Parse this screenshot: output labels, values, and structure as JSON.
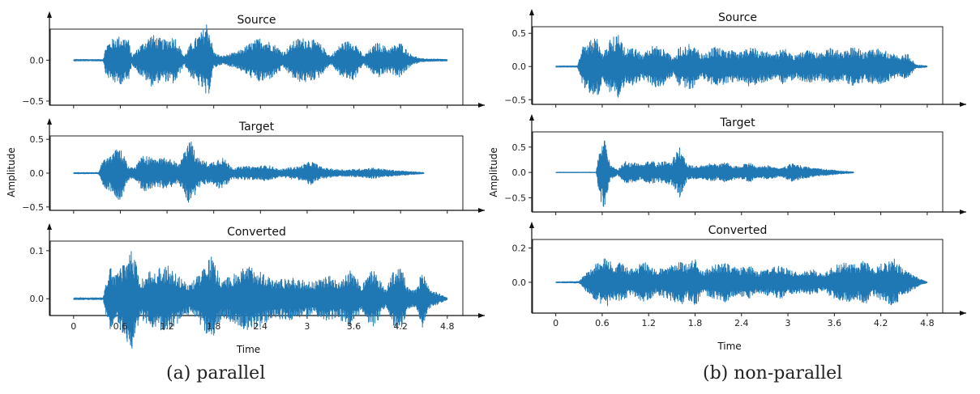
{
  "chart_data": [
    {
      "type": "line",
      "caption": "(a) parallel",
      "xlabel": "Time",
      "ylabel": "Amplitude",
      "xlim": [
        -0.3,
        5.0
      ],
      "xticks": [
        0,
        0.6,
        1.2,
        1.8,
        2.4,
        3,
        3.6,
        4.2,
        4.8
      ],
      "xtick_labels": [
        "0",
        "0.6",
        "1.2",
        "1.8",
        "2.4",
        "3",
        "3.6",
        "4.2",
        "4.8"
      ],
      "grid": false,
      "subplots": [
        {
          "title": "Source",
          "ylim": [
            -0.55,
            0.38
          ],
          "yticks": [
            0.0,
            -0.5
          ],
          "ytick_labels": [
            "0.0",
            "−0.5"
          ],
          "duration": 4.8,
          "envelope": [
            [
              0,
              0.01
            ],
            [
              0.38,
              0.01
            ],
            [
              0.42,
              0.2
            ],
            [
              0.55,
              0.3
            ],
            [
              0.7,
              0.28
            ],
            [
              0.75,
              0.05
            ],
            [
              0.85,
              0.18
            ],
            [
              1.0,
              0.32
            ],
            [
              1.15,
              0.25
            ],
            [
              1.3,
              0.3
            ],
            [
              1.42,
              0.05
            ],
            [
              1.5,
              0.2
            ],
            [
              1.65,
              0.36
            ],
            [
              1.72,
              0.5
            ],
            [
              1.8,
              0.1
            ],
            [
              1.9,
              0.05
            ],
            [
              2.1,
              0.1
            ],
            [
              2.25,
              0.2
            ],
            [
              2.4,
              0.28
            ],
            [
              2.55,
              0.22
            ],
            [
              2.7,
              0.1
            ],
            [
              2.85,
              0.26
            ],
            [
              3.0,
              0.28
            ],
            [
              3.15,
              0.22
            ],
            [
              3.3,
              0.05
            ],
            [
              3.45,
              0.22
            ],
            [
              3.6,
              0.25
            ],
            [
              3.72,
              0.05
            ],
            [
              3.9,
              0.22
            ],
            [
              4.05,
              0.15
            ],
            [
              4.2,
              0.22
            ],
            [
              4.32,
              0.08
            ],
            [
              4.45,
              0.02
            ],
            [
              4.8,
              0.01
            ]
          ]
        },
        {
          "title": "Target",
          "ylim": [
            -0.55,
            0.55
          ],
          "yticks": [
            0.5,
            0.0,
            -0.5
          ],
          "ytick_labels": [
            "0.5",
            "0.0",
            "−0.5"
          ],
          "duration": 4.5,
          "envelope": [
            [
              0,
              0.01
            ],
            [
              0.32,
              0.01
            ],
            [
              0.38,
              0.2
            ],
            [
              0.5,
              0.3
            ],
            [
              0.6,
              0.42
            ],
            [
              0.7,
              0.1
            ],
            [
              0.78,
              0.08
            ],
            [
              0.9,
              0.28
            ],
            [
              1.05,
              0.2
            ],
            [
              1.2,
              0.24
            ],
            [
              1.35,
              0.15
            ],
            [
              1.5,
              0.5
            ],
            [
              1.6,
              0.22
            ],
            [
              1.75,
              0.15
            ],
            [
              1.9,
              0.25
            ],
            [
              2.05,
              0.08
            ],
            [
              2.2,
              0.1
            ],
            [
              2.35,
              0.1
            ],
            [
              2.5,
              0.12
            ],
            [
              2.65,
              0.05
            ],
            [
              2.75,
              0.08
            ],
            [
              2.9,
              0.1
            ],
            [
              3.05,
              0.18
            ],
            [
              3.2,
              0.08
            ],
            [
              3.35,
              0.06
            ],
            [
              3.5,
              0.05
            ],
            [
              3.65,
              0.06
            ],
            [
              3.85,
              0.08
            ],
            [
              4.05,
              0.05
            ],
            [
              4.25,
              0.03
            ],
            [
              4.5,
              0.01
            ]
          ]
        },
        {
          "title": "Converted",
          "ylim": [
            -0.035,
            0.12
          ],
          "yticks": [
            0.1,
            0.0
          ],
          "ytick_labels": [
            "0.1",
            "0.0"
          ],
          "duration": 4.8,
          "envelope": [
            [
              0,
              0.002
            ],
            [
              0.38,
              0.002
            ],
            [
              0.45,
              0.07
            ],
            [
              0.55,
              0.05
            ],
            [
              0.75,
              0.11
            ],
            [
              0.85,
              0.04
            ],
            [
              1.0,
              0.06
            ],
            [
              1.2,
              0.07
            ],
            [
              1.35,
              0.05
            ],
            [
              1.5,
              0.03
            ],
            [
              1.6,
              0.05
            ],
            [
              1.78,
              0.09
            ],
            [
              1.9,
              0.04
            ],
            [
              2.05,
              0.05
            ],
            [
              2.25,
              0.07
            ],
            [
              2.4,
              0.06
            ],
            [
              2.55,
              0.04
            ],
            [
              2.75,
              0.045
            ],
            [
              2.9,
              0.04
            ],
            [
              3.1,
              0.035
            ],
            [
              3.25,
              0.05
            ],
            [
              3.4,
              0.04
            ],
            [
              3.55,
              0.06
            ],
            [
              3.7,
              0.03
            ],
            [
              3.85,
              0.065
            ],
            [
              4.0,
              0.02
            ],
            [
              4.1,
              0.055
            ],
            [
              4.2,
              0.07
            ],
            [
              4.3,
              0.02
            ],
            [
              4.4,
              0.02
            ],
            [
              4.48,
              0.06
            ],
            [
              4.58,
              0.02
            ],
            [
              4.8,
              0.002
            ]
          ]
        }
      ]
    },
    {
      "type": "line",
      "caption": "(b) non-parallel",
      "xlabel": "Time",
      "ylabel": "Amplitude",
      "xlim": [
        -0.3,
        5.0
      ],
      "xticks": [
        0,
        0.6,
        1.2,
        1.8,
        2.4,
        3,
        3.6,
        4.2,
        4.8
      ],
      "xtick_labels": [
        "0",
        "0.6",
        "1.2",
        "1.8",
        "2.4",
        "3",
        "3.6",
        "4.2",
        "4.8"
      ],
      "grid": false,
      "subplots": [
        {
          "title": "Source",
          "ylim": [
            -0.57,
            0.6
          ],
          "yticks": [
            0.5,
            0.0,
            -0.5
          ],
          "ytick_labels": [
            "0.5",
            "0.0",
            "−0.5"
          ],
          "duration": 4.8,
          "envelope": [
            [
              0,
              0.01
            ],
            [
              0.28,
              0.01
            ],
            [
              0.35,
              0.3
            ],
            [
              0.45,
              0.42
            ],
            [
              0.55,
              0.45
            ],
            [
              0.6,
              0.2
            ],
            [
              0.7,
              0.4
            ],
            [
              0.8,
              0.5
            ],
            [
              0.9,
              0.25
            ],
            [
              1.0,
              0.3
            ],
            [
              1.12,
              0.18
            ],
            [
              1.25,
              0.32
            ],
            [
              1.4,
              0.28
            ],
            [
              1.52,
              0.12
            ],
            [
              1.6,
              0.3
            ],
            [
              1.75,
              0.35
            ],
            [
              1.9,
              0.18
            ],
            [
              2.05,
              0.3
            ],
            [
              2.2,
              0.26
            ],
            [
              2.35,
              0.22
            ],
            [
              2.5,
              0.3
            ],
            [
              2.65,
              0.25
            ],
            [
              2.8,
              0.2
            ],
            [
              2.95,
              0.28
            ],
            [
              3.1,
              0.18
            ],
            [
              3.25,
              0.25
            ],
            [
              3.4,
              0.2
            ],
            [
              3.55,
              0.28
            ],
            [
              3.7,
              0.22
            ],
            [
              3.85,
              0.3
            ],
            [
              4.0,
              0.22
            ],
            [
              4.15,
              0.28
            ],
            [
              4.3,
              0.22
            ],
            [
              4.45,
              0.15
            ],
            [
              4.55,
              0.2
            ],
            [
              4.65,
              0.03
            ],
            [
              4.8,
              0.01
            ]
          ]
        },
        {
          "title": "Target",
          "ylim": [
            -0.78,
            0.8
          ],
          "yticks": [
            0.5,
            0.0,
            -0.5
          ],
          "ytick_labels": [
            "0.5",
            "0.0",
            "−0.5"
          ],
          "duration": 3.85,
          "envelope": [
            [
              0,
              0.005
            ],
            [
              0.52,
              0.005
            ],
            [
              0.57,
              0.5
            ],
            [
              0.62,
              0.75
            ],
            [
              0.7,
              0.15
            ],
            [
              0.8,
              0.05
            ],
            [
              0.9,
              0.22
            ],
            [
              1.0,
              0.2
            ],
            [
              1.1,
              0.15
            ],
            [
              1.2,
              0.22
            ],
            [
              1.35,
              0.2
            ],
            [
              1.5,
              0.25
            ],
            [
              1.6,
              0.5
            ],
            [
              1.7,
              0.15
            ],
            [
              1.85,
              0.12
            ],
            [
              2.0,
              0.18
            ],
            [
              2.1,
              0.15
            ],
            [
              2.2,
              0.2
            ],
            [
              2.35,
              0.12
            ],
            [
              2.5,
              0.2
            ],
            [
              2.6,
              0.1
            ],
            [
              2.75,
              0.14
            ],
            [
              2.9,
              0.08
            ],
            [
              3.05,
              0.18
            ],
            [
              3.2,
              0.12
            ],
            [
              3.35,
              0.08
            ],
            [
              3.5,
              0.06
            ],
            [
              3.62,
              0.04
            ],
            [
              3.85,
              0.01
            ]
          ]
        },
        {
          "title": "Converted",
          "ylim": [
            -0.18,
            0.25
          ],
          "yticks": [
            0.2,
            0.0
          ],
          "ytick_labels": [
            "0.2",
            "0.0"
          ],
          "duration": 4.8,
          "envelope": [
            [
              0,
              0.003
            ],
            [
              0.3,
              0.005
            ],
            [
              0.4,
              0.06
            ],
            [
              0.55,
              0.12
            ],
            [
              0.65,
              0.15
            ],
            [
              0.75,
              0.1
            ],
            [
              0.85,
              0.13
            ],
            [
              0.95,
              0.07
            ],
            [
              1.05,
              0.1
            ],
            [
              1.15,
              0.12
            ],
            [
              1.3,
              0.07
            ],
            [
              1.45,
              0.1
            ],
            [
              1.6,
              0.14
            ],
            [
              1.7,
              0.1
            ],
            [
              1.8,
              0.14
            ],
            [
              1.9,
              0.07
            ],
            [
              2.05,
              0.1
            ],
            [
              2.2,
              0.12
            ],
            [
              2.35,
              0.08
            ],
            [
              2.5,
              0.1
            ],
            [
              2.6,
              0.06
            ],
            [
              2.75,
              0.08
            ],
            [
              2.9,
              0.1
            ],
            [
              3.05,
              0.07
            ],
            [
              3.2,
              0.06
            ],
            [
              3.3,
              0.08
            ],
            [
              3.45,
              0.05
            ],
            [
              3.6,
              0.1
            ],
            [
              3.75,
              0.12
            ],
            [
              3.9,
              0.1
            ],
            [
              4.0,
              0.14
            ],
            [
              4.1,
              0.08
            ],
            [
              4.25,
              0.12
            ],
            [
              4.38,
              0.14
            ],
            [
              4.48,
              0.08
            ],
            [
              4.6,
              0.05
            ],
            [
              4.7,
              0.02
            ],
            [
              4.8,
              0.003
            ]
          ]
        }
      ]
    }
  ]
}
